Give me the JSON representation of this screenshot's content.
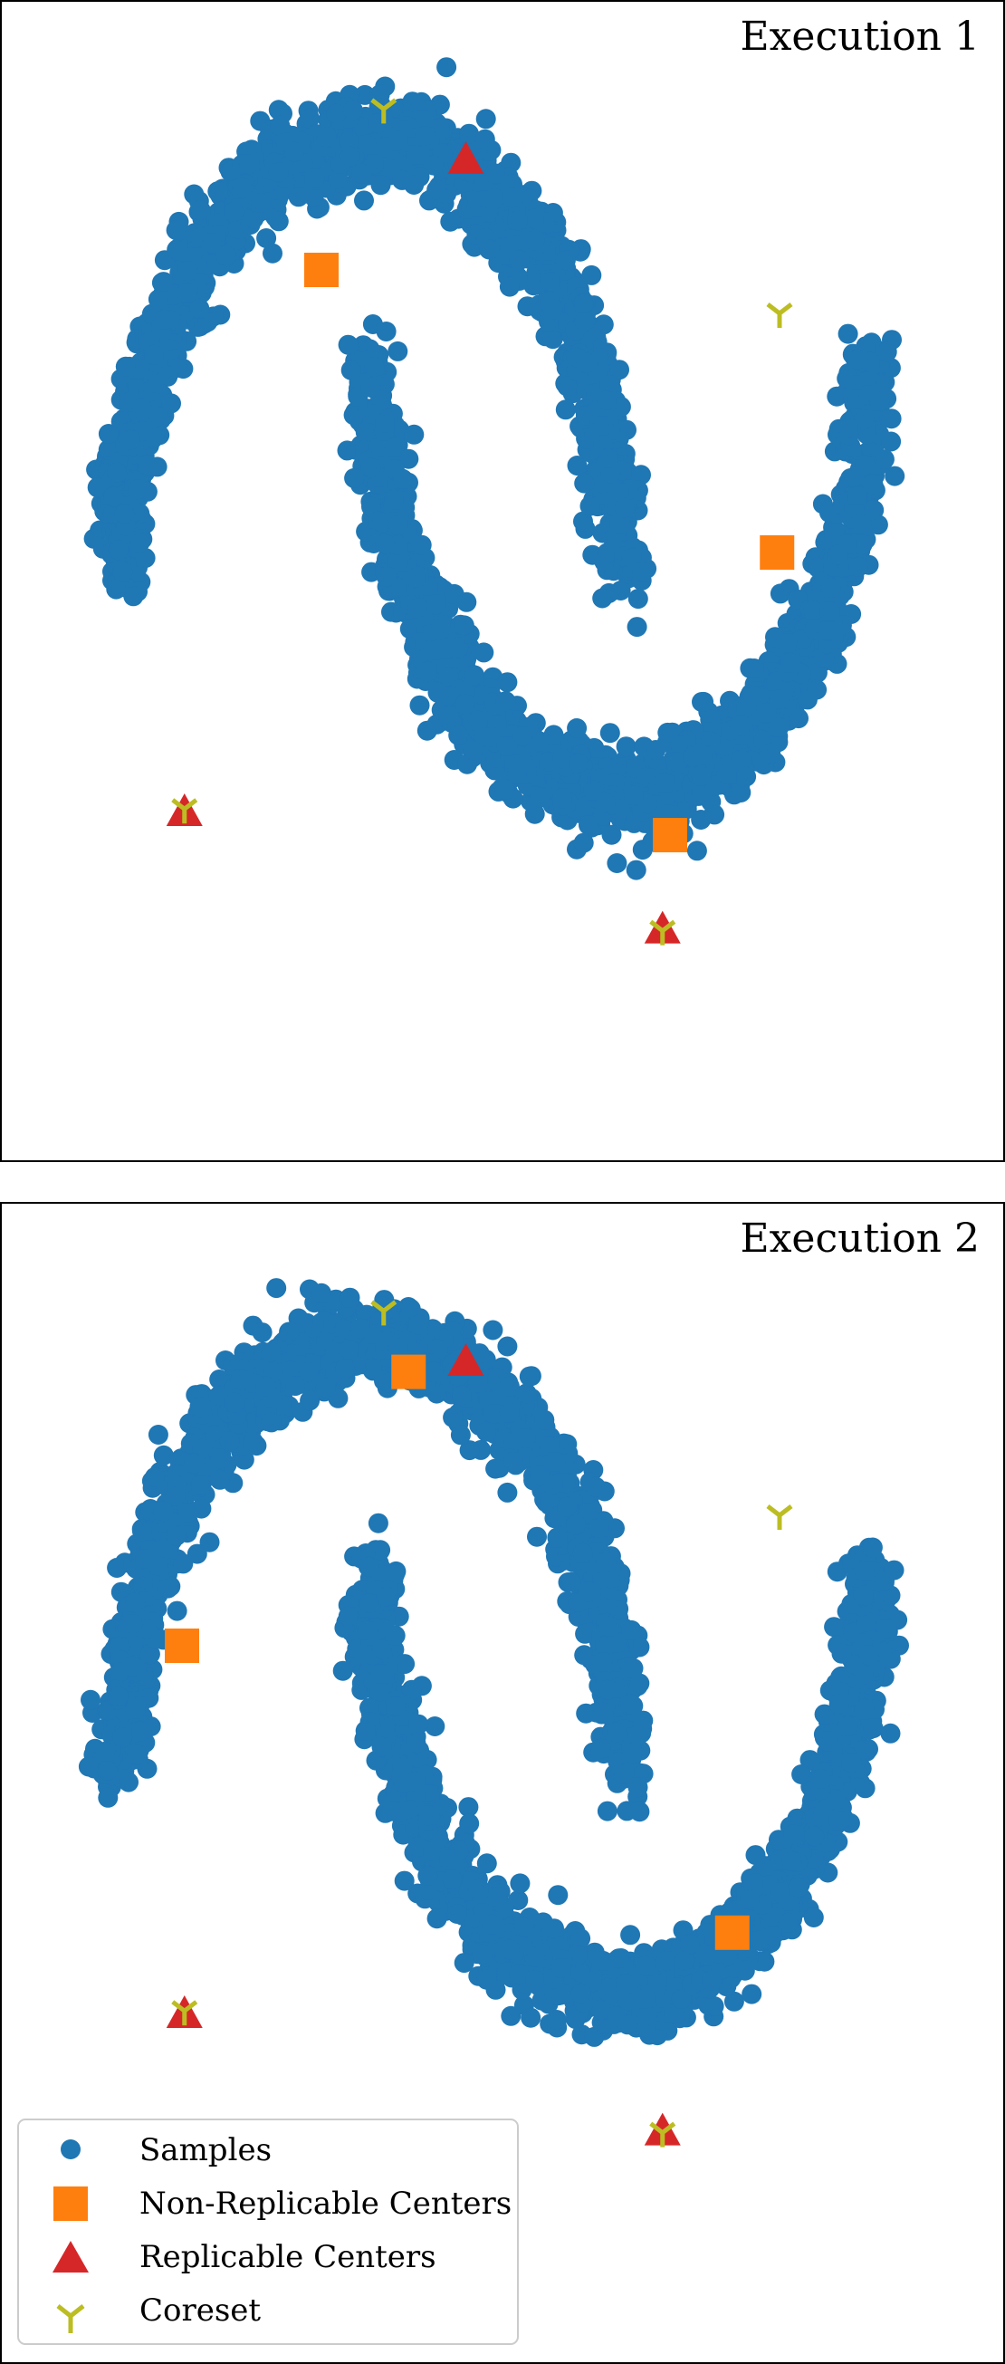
{
  "chart_data": {
    "type": "scatter",
    "colors": {
      "samples": "#1f77b4",
      "non_replicable": "#ff7f0e",
      "replicable": "#d62728",
      "coreset": "#bcbd22"
    },
    "moons": {
      "upper_center": [
        0.0,
        0.0
      ],
      "lower_center": [
        1.0,
        0.5
      ],
      "radius": 1.0,
      "noise": 0.05,
      "points_per_moon": 1500
    },
    "panels": [
      {
        "title": "Execution 1",
        "non_replicable_centers": [
          [
            -0.2,
            0.7
          ],
          [
            1.63,
            0.05
          ],
          [
            1.2,
            -0.6
          ]
        ],
        "replicable_centers": [
          [
            0.38,
            0.95
          ],
          [
            -0.75,
            -0.55
          ],
          [
            1.17,
            -0.82
          ]
        ],
        "coreset": [
          [
            0.05,
            1.07
          ],
          [
            1.64,
            0.6
          ],
          [
            -0.75,
            -0.54
          ],
          [
            1.17,
            -0.82
          ]
        ]
      },
      {
        "title": "Execution 2",
        "non_replicable_centers": [
          [
            0.15,
            0.93
          ],
          [
            -0.76,
            0.3
          ],
          [
            1.45,
            -0.36
          ]
        ],
        "replicable_centers": [
          [
            0.38,
            0.95
          ],
          [
            -0.75,
            -0.55
          ],
          [
            1.17,
            -0.82
          ]
        ],
        "coreset": [
          [
            0.05,
            1.07
          ],
          [
            1.64,
            0.6
          ],
          [
            -0.75,
            -0.54
          ],
          [
            1.17,
            -0.82
          ]
        ]
      }
    ],
    "legend": {
      "position": "lower-left",
      "entries": [
        "Samples",
        "Non-Replicable Centers",
        "Replicable Centers",
        "Coreset"
      ]
    },
    "axes_visible": false,
    "grid": false
  }
}
